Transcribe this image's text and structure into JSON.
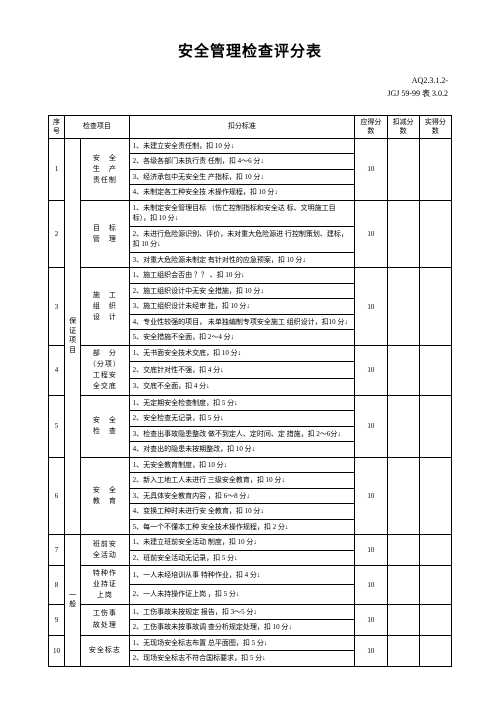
{
  "title": "安全管理检查评分表",
  "ref1": "AQ2.3.1.2-",
  "ref2": "JGJ 59-99 表 3.0.2",
  "head": {
    "seq": "序号",
    "item": "检查项目",
    "std": "扣分标准",
    "c1": "应得分数",
    "c2": "扣减分数",
    "c3": "实得分数"
  },
  "cat1": "保证项目",
  "cat2": "一般",
  "rows": [
    {
      "no": "1",
      "item": "安　全\n生　产\n责任制",
      "lines": [
        "1、未建立安全责任制，扣 10 分↓",
        "2、各级各部门未执行责 任制，扣 4～6 分↓",
        "3、经济承包中无安全生 产指标，扣 10 分↓",
        "4、未制定各工种安全技 术操作规程，扣 10 分↓"
      ],
      "score": "10"
    },
    {
      "no": "2",
      "item": "目　标\n管　理",
      "lines": [
        "1、未制定安全管理目标 （伤亡控制指标和安全达 标、文明施工目标），扣 10 分↓",
        "2、未进行危险源识别、评价，未对重大危险源进 行控制策划、建标，扣 10 分↓",
        "3、对重大危险源未制定 有针对性的应急预案，扣 10 分↓"
      ],
      "score": "10"
    },
    {
      "no": "3",
      "item": "施　工\n组　织\n设　计",
      "lines": [
        "1、施工组织会否由 ？？ 、扣 10 分↓",
        "2、施工组织设计中无安 全措施，扣 10 分↓",
        "3、施工组织设计未经审 批，扣 10 分↓",
        "4、专业性较强的项目， 未单独编制专项安全施工 组织设计，扣10 分↓",
        "5、安全措施不全面，扣 2～4 分↓"
      ],
      "score": "10"
    },
    {
      "no": "4",
      "item": "部　分\n（分项）\n工程安\n全交底",
      "lines": [
        "1、无书面安全技术交底，扣 10 分↓",
        "2、交底针对性不强，扣 4 分↓",
        "3、交底不全面，扣 4 分↓"
      ],
      "score": "10"
    },
    {
      "no": "5",
      "item": "安　全\n检　查",
      "lines": [
        "1、无定期安全检查制度，扣 5 分↓",
        "2、安全检查无记录，扣 5 分↓",
        "3、检查出事故隐患整改 做不到定人、定时间、定 措施，扣 2～6分↓",
        "4、对查出的隐患未按期整改，扣 10 分↓"
      ],
      "score": "10"
    },
    {
      "no": "6",
      "item": "安　全\n教　育",
      "lines": [
        "1、无安全教育制度，扣 10 分↓",
        "2、新入工地工人未进行 三级安全教育，扣 10 分↓",
        "3、无具体安全教育内容 ，扣 6～8 分↓",
        "4、变换工种时未进行安 全教育，扣 10 分↓",
        "5、每一个不懂本工种 安全技术操作规程，扣 2 分↓"
      ],
      "score": "10"
    },
    {
      "no": "7",
      "item": "班前安\n全活动",
      "lines": [
        "1、未建立班前安全活动 制度，扣 10 分↓",
        "2、班前安全活动无记录，扣 5 分↓"
      ],
      "score": "10"
    },
    {
      "no": "8",
      "item": "特种作\n业持证\n上岗",
      "lines": [
        "1、一人未经培训从事 特种作业，扣 4 分↓",
        "2、一人未持操作证上岗 ，扣 5 分↓"
      ],
      "score": "10"
    },
    {
      "no": "9",
      "item": "工伤事\n故处理",
      "lines": [
        "1、工伤事故未按规定 报告，扣 3～5 分↓",
        "2、工伤事故未按事故调 查分析规定处理，扣 10 分↓"
      ],
      "score": "10"
    },
    {
      "no": "10",
      "item": "安全标志",
      "lines": [
        "1、无现场安全标志布置 总平面图，扣 5 分↓",
        "2、现场安全标志不符合国标要求，扣 5 分↓"
      ],
      "score": "10"
    }
  ]
}
